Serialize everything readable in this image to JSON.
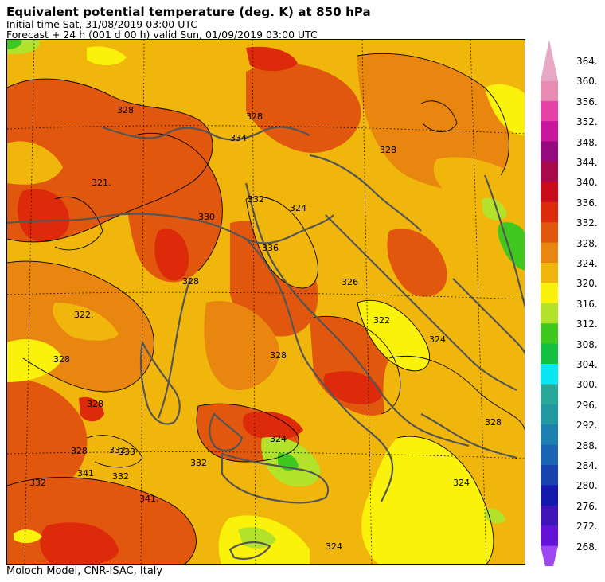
{
  "header": {
    "title": "Equivalent potential temperature (deg. K) at 850 hPa",
    "initial_time": "Initial time  Sat, 31/08/2019  03:00 UTC",
    "forecast": "Forecast  +  24 h  (001 d 00 h)  valid Sun, 01/09/2019 03:00 UTC"
  },
  "footer": {
    "credit": "Moloch Model, CNR-ISAC, Italy"
  },
  "colorbar": {
    "labels": [
      "364.",
      "360.",
      "356.",
      "352.",
      "348.",
      "344.",
      "340.",
      "336.",
      "332.",
      "328.",
      "324.",
      "320.",
      "316.",
      "312.",
      "308.",
      "304.",
      "300.",
      "296.",
      "292.",
      "288.",
      "284.",
      "280.",
      "276.",
      "272.",
      "268."
    ],
    "colors": [
      "#e7a9c6",
      "#e88cb4",
      "#e542a8",
      "#c8159c",
      "#96097e",
      "#a8094a",
      "#c80a1a",
      "#dc2a0a",
      "#e0570d",
      "#e8860f",
      "#f1b60c",
      "#faf20a",
      "#b2e22a",
      "#3fc81e",
      "#14c040",
      "#0ae6f2",
      "#28a89a",
      "#2298a0",
      "#1c80b0",
      "#1c64b4",
      "#1844b0",
      "#1418ac",
      "#3e14b8",
      "#6412d8",
      "#9e46f0"
    ]
  },
  "map": {
    "palette": {
      "c320": "#faf20a",
      "c324": "#f1b60c",
      "c328": "#e8860f",
      "c332": "#e0570d",
      "c336": "#dc2a0a",
      "c316": "#b2e22a",
      "c312": "#3fc81e",
      "coast": "#555555"
    },
    "contour_labels": [
      "328",
      "334",
      "321.",
      "328",
      "332",
      "336",
      "330",
      "328",
      "322.",
      "328",
      "328",
      "332",
      "333",
      "328",
      "328",
      "324",
      "326",
      "322",
      "324",
      "328",
      "341",
      "332",
      "341.",
      "324",
      "332",
      "324",
      "332",
      "328",
      "324"
    ]
  }
}
